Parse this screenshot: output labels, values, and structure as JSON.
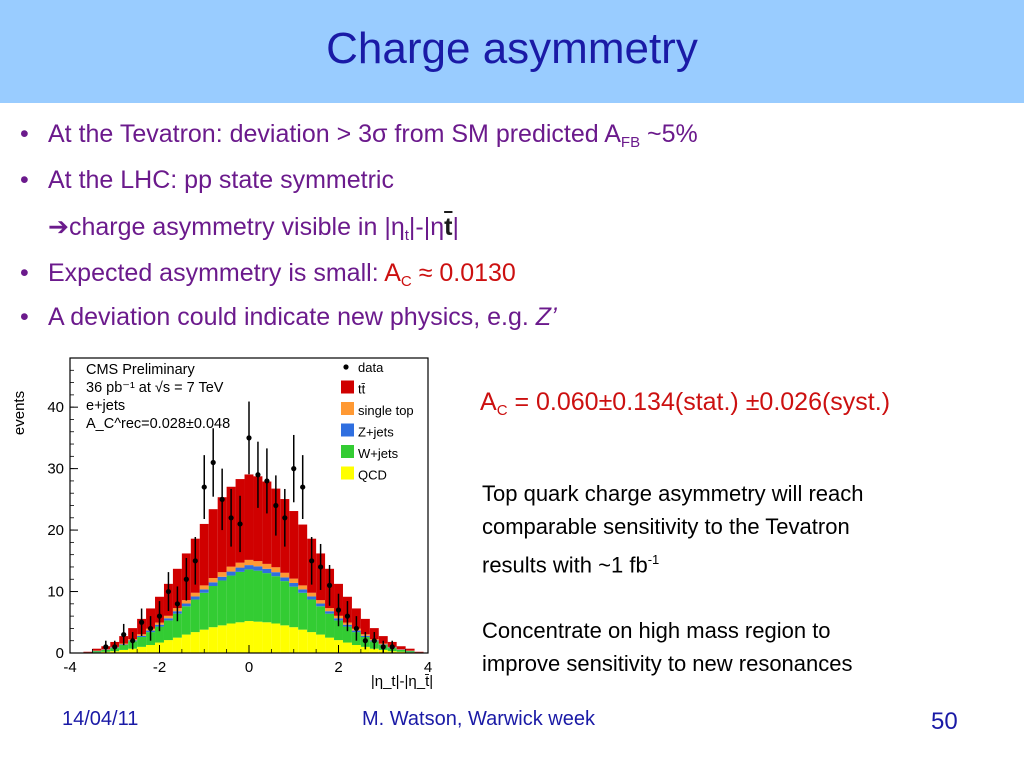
{
  "header": {
    "title": "Charge asymmetry"
  },
  "bullets": {
    "b1": {
      "bullet": "•",
      "text": "At the Tevatron: deviation > 3σ from SM predicted A",
      "sub": "FB",
      "after": " ~5%"
    },
    "b2": {
      "bullet": "•",
      "text": "At the LHC: pp state symmetric"
    },
    "b3": {
      "arrow": "➔",
      "text": "charge asymmetry visible in |η",
      "sub": "t",
      "mid": "|-|η",
      "bar_label": "t",
      "end": "|"
    },
    "b4": {
      "bullet": "•",
      "text": "Expected asymmetry is small:  ",
      "ac": "A",
      "ac_sub": "C",
      "ac_value": " ≈ 0.0130"
    },
    "b5": {
      "bullet": "•",
      "text": "A deviation could indicate new physics, e.g. ",
      "italic": "Z’"
    }
  },
  "result": {
    "a": "A",
    "sub": "C",
    "value": " = 0.060±0.134(stat.) ±0.026(syst.)"
  },
  "notes": {
    "line1": "Top quark charge asymmetry will reach",
    "line2": "comparable sensitivity  to the Tevatron",
    "line3_pre": "results with ~1 fb",
    "line3_sup": "-1",
    "line4": "Concentrate on high mass region to",
    "line5": "improve sensitivity to new resonances"
  },
  "footer": {
    "date": "14/04/11",
    "author": "M. Watson, Warwick week",
    "page": "50"
  },
  "colors": {
    "title": "#1a1aa6",
    "bullet_text": "#6b1a8c",
    "highlight": "#cc1010",
    "header_bg": "#99ccff"
  },
  "chart_data": {
    "type": "bar",
    "stacked": true,
    "histogram": true,
    "x_range": [
      -4,
      4
    ],
    "ylim": [
      0,
      48
    ],
    "x_ticks": [
      "-4",
      "-2",
      "0",
      "2",
      "4"
    ],
    "y_ticks": [
      "0",
      "10",
      "20",
      "30",
      "40"
    ],
    "xlabel": "|η_t|-|η_t̄|",
    "ylabel": "events",
    "bin_centers": [
      -3.8,
      -3.6,
      -3.4,
      -3.2,
      -3.0,
      -2.8,
      -2.6,
      -2.4,
      -2.2,
      -2.0,
      -1.8,
      -1.6,
      -1.4,
      -1.2,
      -1.0,
      -0.8,
      -0.6,
      -0.4,
      -0.2,
      0.0,
      0.2,
      0.4,
      0.6,
      0.8,
      1.0,
      1.2,
      1.4,
      1.6,
      1.8,
      2.0,
      2.2,
      2.4,
      2.6,
      2.8,
      3.0,
      3.2,
      3.4,
      3.6,
      3.8
    ],
    "series": [
      {
        "name": "QCD",
        "color": "#ffff00",
        "values": [
          0,
          0,
          0.1,
          0.2,
          0.3,
          0.5,
          0.7,
          1.0,
          1.3,
          1.7,
          2.1,
          2.5,
          3.0,
          3.4,
          3.8,
          4.2,
          4.5,
          4.8,
          5.0,
          5.2,
          5.1,
          5.0,
          4.8,
          4.5,
          4.2,
          3.8,
          3.4,
          3.0,
          2.5,
          2.1,
          1.7,
          1.3,
          1.0,
          0.7,
          0.5,
          0.3,
          0.2,
          0.1,
          0
        ]
      },
      {
        "name": "W+jets",
        "color": "#33cc33",
        "values": [
          0,
          0.1,
          0.2,
          0.3,
          0.5,
          0.8,
          1.2,
          1.6,
          2.1,
          2.6,
          3.2,
          3.9,
          4.6,
          5.3,
          6.0,
          6.7,
          7.3,
          7.8,
          8.2,
          8.4,
          8.3,
          8.0,
          7.7,
          7.2,
          6.6,
          6.0,
          5.3,
          4.6,
          3.9,
          3.2,
          2.6,
          2.1,
          1.6,
          1.2,
          0.8,
          0.5,
          0.3,
          0.2,
          0.1
        ]
      },
      {
        "name": "Z+jets",
        "color": "#2f6fe0",
        "values": [
          0,
          0,
          0.05,
          0.05,
          0.1,
          0.1,
          0.15,
          0.2,
          0.25,
          0.3,
          0.35,
          0.4,
          0.45,
          0.5,
          0.55,
          0.6,
          0.6,
          0.65,
          0.7,
          0.7,
          0.7,
          0.7,
          0.65,
          0.6,
          0.6,
          0.55,
          0.5,
          0.45,
          0.4,
          0.35,
          0.3,
          0.25,
          0.2,
          0.15,
          0.1,
          0.1,
          0.05,
          0.05,
          0
        ]
      },
      {
        "name": "single top",
        "color": "#ff9933",
        "values": [
          0,
          0,
          0.05,
          0.05,
          0.1,
          0.15,
          0.2,
          0.25,
          0.3,
          0.35,
          0.4,
          0.5,
          0.55,
          0.6,
          0.65,
          0.7,
          0.75,
          0.8,
          0.8,
          0.85,
          0.85,
          0.8,
          0.8,
          0.75,
          0.7,
          0.65,
          0.6,
          0.55,
          0.5,
          0.4,
          0.35,
          0.3,
          0.25,
          0.2,
          0.15,
          0.1,
          0.05,
          0.05,
          0
        ]
      },
      {
        "name": "tt̄",
        "color": "#d00000",
        "values": [
          0,
          0.1,
          0.3,
          0.5,
          0.8,
          1.2,
          1.8,
          2.5,
          3.3,
          4.2,
          5.2,
          6.4,
          7.6,
          8.8,
          10.0,
          11.2,
          12.2,
          13.0,
          13.6,
          13.9,
          13.8,
          13.4,
          12.8,
          12.0,
          11.0,
          9.9,
          8.8,
          7.6,
          6.4,
          5.2,
          4.2,
          3.3,
          2.5,
          1.8,
          1.2,
          0.8,
          0.5,
          0.3,
          0.1
        ]
      }
    ],
    "data_series": {
      "name": "data",
      "values": [
        0,
        0,
        0,
        1,
        1,
        3,
        2,
        5,
        4,
        6,
        10,
        8,
        12,
        15,
        27,
        31,
        25,
        22,
        21,
        35,
        29,
        28,
        24,
        22,
        30,
        27,
        15,
        14,
        11,
        7,
        6,
        4,
        2,
        2,
        1,
        1,
        0,
        0,
        0
      ],
      "error_bars": "sqrt(N)"
    },
    "legend": [
      "data",
      "tt̄",
      "single top",
      "Z+jets",
      "W+jets",
      "QCD"
    ],
    "legend_position": "top-right",
    "annotations": [
      "CMS Preliminary",
      "36 pb⁻¹ at √s = 7 TeV",
      "e+jets",
      "A_C^rec=0.028±0.048"
    ]
  }
}
